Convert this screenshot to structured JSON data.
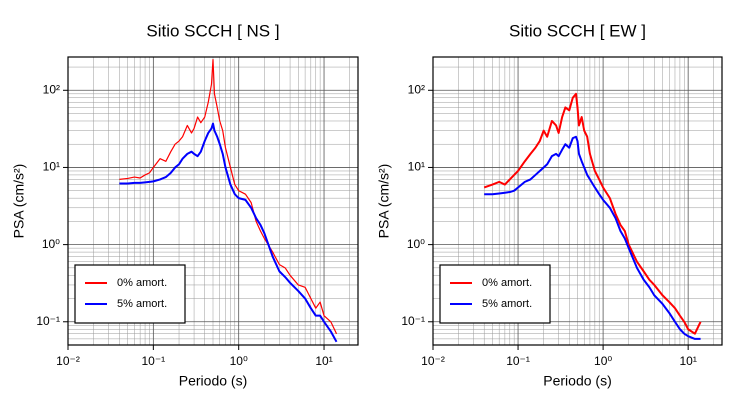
{
  "chart_data": [
    {
      "type": "line",
      "title": "Sitio SCCH [ NS ]",
      "x_label": "Periodo (s)",
      "y_label": "PSA (cm/s²)",
      "xscale": "log",
      "yscale": "log",
      "grid": true,
      "legend": "lower left",
      "xlim": [
        0.01,
        25
      ],
      "ylim": [
        0.05,
        270
      ],
      "xticks": [
        {
          "value": 0.01,
          "label": "10⁻²"
        },
        {
          "value": 0.1,
          "label": "10⁻¹"
        },
        {
          "value": 1,
          "label": "10⁰"
        },
        {
          "value": 10,
          "label": "10¹"
        }
      ],
      "yticks": [
        {
          "value": 0.1,
          "label": "10⁻¹"
        },
        {
          "value": 1,
          "label": "10⁰"
        },
        {
          "value": 10,
          "label": "10¹"
        },
        {
          "value": 100,
          "label": "10²"
        }
      ],
      "x": [
        0.04,
        0.05,
        0.06,
        0.07,
        0.08,
        0.09,
        0.1,
        0.12,
        0.14,
        0.16,
        0.18,
        0.2,
        0.22,
        0.25,
        0.28,
        0.3,
        0.33,
        0.36,
        0.4,
        0.44,
        0.48,
        0.5,
        0.52,
        0.56,
        0.6,
        0.65,
        0.7,
        0.8,
        0.9,
        1.0,
        1.2,
        1.4,
        1.6,
        1.8,
        2.0,
        2.5,
        3.0,
        3.5,
        4.0,
        5.0,
        6.0,
        7.0,
        8.0,
        9.0,
        10,
        12,
        14
      ],
      "series": [
        {
          "name": "0% amort.",
          "color": "#ff0000",
          "width": 1.2,
          "values": [
            7,
            7.2,
            7.5,
            7.3,
            8,
            8.5,
            10,
            13,
            12,
            16,
            20,
            22,
            25,
            35,
            28,
            32,
            45,
            38,
            45,
            70,
            120,
            250,
            90,
            60,
            40,
            30,
            18,
            10,
            6,
            5,
            4.5,
            3.5,
            2,
            1.5,
            1.2,
            0.8,
            0.55,
            0.5,
            0.4,
            0.3,
            0.28,
            0.2,
            0.15,
            0.18,
            0.12,
            0.1,
            0.07
          ]
        },
        {
          "name": "5% amort.",
          "color": "#0000ff",
          "width": 2,
          "values": [
            6.2,
            6.2,
            6.3,
            6.3,
            6.4,
            6.5,
            6.6,
            7,
            7.5,
            8.5,
            10,
            11,
            13,
            15,
            16,
            15,
            14,
            16,
            22,
            28,
            32,
            37,
            30,
            25,
            20,
            15,
            10,
            6,
            4.5,
            4,
            3.8,
            3,
            2.2,
            1.8,
            1.4,
            0.7,
            0.45,
            0.38,
            0.32,
            0.25,
            0.2,
            0.15,
            0.12,
            0.12,
            0.1,
            0.075,
            0.055
          ]
        }
      ]
    },
    {
      "type": "line",
      "title": "Sitio SCCH [ EW ]",
      "x_label": "Periodo (s)",
      "y_label": "PSA (cm/s²)",
      "xscale": "log",
      "yscale": "log",
      "grid": true,
      "legend": "lower left",
      "xlim": [
        0.01,
        25
      ],
      "ylim": [
        0.05,
        270
      ],
      "xticks": [
        {
          "value": 0.01,
          "label": "10⁻²"
        },
        {
          "value": 0.1,
          "label": "10⁻¹"
        },
        {
          "value": 1,
          "label": "10⁰"
        },
        {
          "value": 10,
          "label": "10¹"
        }
      ],
      "yticks": [
        {
          "value": 0.1,
          "label": "10⁻¹"
        },
        {
          "value": 1,
          "label": "10⁰"
        },
        {
          "value": 10,
          "label": "10¹"
        },
        {
          "value": 100,
          "label": "10²"
        }
      ],
      "x": [
        0.04,
        0.05,
        0.06,
        0.07,
        0.08,
        0.09,
        0.1,
        0.12,
        0.14,
        0.16,
        0.18,
        0.2,
        0.22,
        0.25,
        0.28,
        0.3,
        0.33,
        0.36,
        0.4,
        0.44,
        0.48,
        0.5,
        0.52,
        0.56,
        0.6,
        0.65,
        0.7,
        0.8,
        0.9,
        1.0,
        1.2,
        1.4,
        1.6,
        1.8,
        2.0,
        2.5,
        3.0,
        3.5,
        4.0,
        5.0,
        6.0,
        7.0,
        8.0,
        9.0,
        10,
        12,
        14
      ],
      "series": [
        {
          "name": "0% amort.",
          "color": "#ff0000",
          "width": 2,
          "values": [
            5.5,
            6,
            6.5,
            6,
            7,
            8,
            9,
            12,
            15,
            18,
            22,
            30,
            25,
            40,
            35,
            28,
            45,
            60,
            55,
            80,
            90,
            60,
            35,
            45,
            30,
            25,
            15,
            9,
            7,
            5.5,
            4,
            2.5,
            1.8,
            1.5,
            1.0,
            0.6,
            0.45,
            0.35,
            0.3,
            0.22,
            0.18,
            0.15,
            0.12,
            0.1,
            0.08,
            0.07,
            0.1
          ]
        },
        {
          "name": "5% amort.",
          "color": "#0000ff",
          "width": 2,
          "values": [
            4.5,
            4.5,
            4.6,
            4.7,
            4.8,
            5,
            5.5,
            6.5,
            7,
            8,
            9,
            10,
            11,
            14,
            15,
            14,
            17,
            20,
            18,
            24,
            25,
            22,
            15,
            12,
            10,
            8,
            7,
            5.5,
            4.5,
            3.8,
            3,
            2.2,
            1.5,
            1.2,
            0.9,
            0.5,
            0.35,
            0.28,
            0.22,
            0.17,
            0.13,
            0.1,
            0.08,
            0.07,
            0.065,
            0.06,
            0.06
          ]
        }
      ]
    }
  ]
}
